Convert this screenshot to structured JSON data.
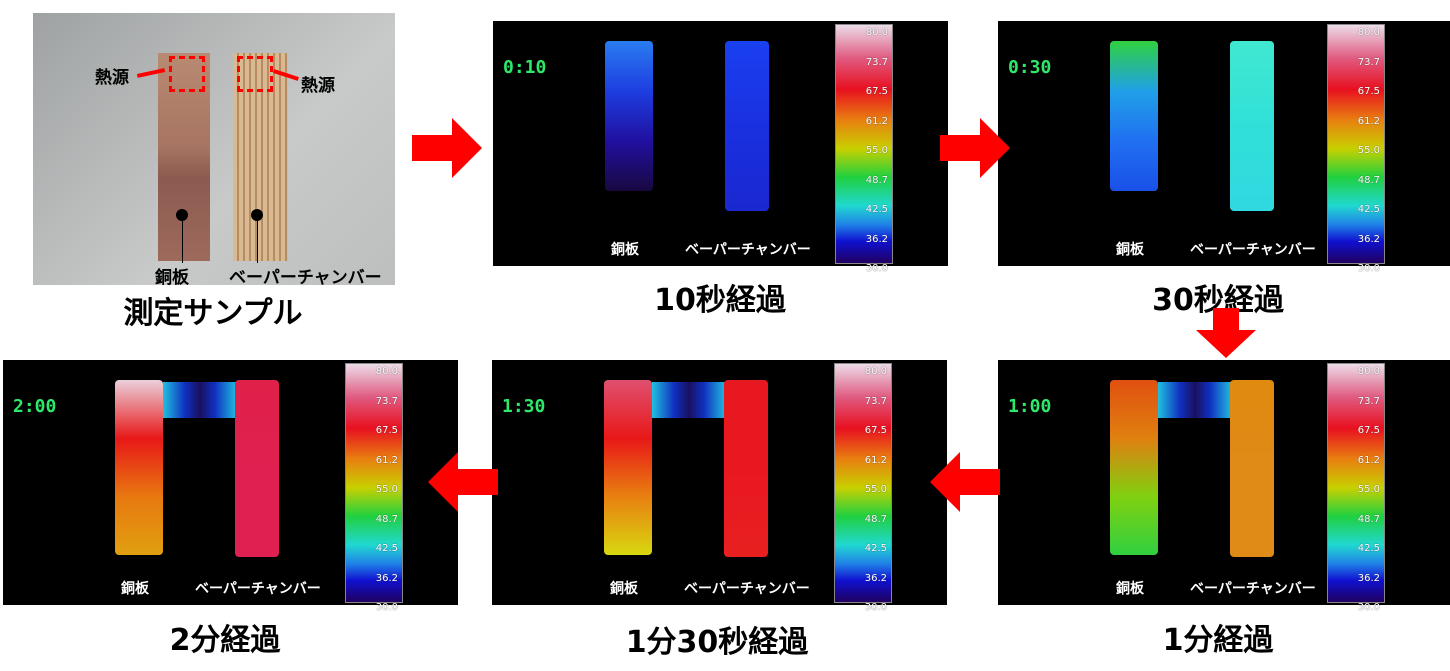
{
  "sample": {
    "caption": "測定サンプル",
    "heat_source": "熱源",
    "copper": "銅板",
    "vapor_chamber": "ベーパーチャンバー"
  },
  "colorbar": {
    "ticks": [
      "80.0",
      "73.7",
      "67.5",
      "61.2",
      "55.0",
      "48.7",
      "42.5",
      "36.2",
      "30.0"
    ]
  },
  "labels": {
    "copper": "銅板",
    "vapor_chamber": "ベーパーチャンバー"
  },
  "arrow_color": "#ff0000",
  "panels": [
    {
      "time": "0:10",
      "caption": "10秒経過",
      "copper_colors": [
        "#2a7cf0",
        "#1e3ee0",
        "#2010a0",
        "#1a0840"
      ],
      "vc_colors": [
        "#1a40f0",
        "#1a30e0",
        "#1a28d0"
      ],
      "bridge": false
    },
    {
      "time": "0:30",
      "caption": "30秒経過",
      "copper_colors": [
        "#30d040",
        "#20a0e8",
        "#2070f0",
        "#1a50e8"
      ],
      "vc_colors": [
        "#40e8d0",
        "#30e0d8",
        "#30d8e0"
      ],
      "bridge": false
    },
    {
      "time": "1:00",
      "caption": "1分経過",
      "copper_colors": [
        "#e05010",
        "#e08010",
        "#80d010",
        "#30d040"
      ],
      "vc_colors": [
        "#e08a10",
        "#e08a18",
        "#e08a18"
      ],
      "bridge": true
    },
    {
      "time": "1:30",
      "caption": "1分30秒経過",
      "copper_colors": [
        "#e05070",
        "#e81818",
        "#e88010",
        "#d8d810"
      ],
      "vc_colors": [
        "#e81820",
        "#e81820",
        "#e82020"
      ],
      "bridge": true
    },
    {
      "time": "2:00",
      "caption": "2分経過",
      "copper_colors": [
        "#ead0dc",
        "#e81818",
        "#e87810",
        "#e0a010"
      ],
      "vc_colors": [
        "#e02048",
        "#e02050",
        "#e02050"
      ],
      "bridge": true
    }
  ]
}
